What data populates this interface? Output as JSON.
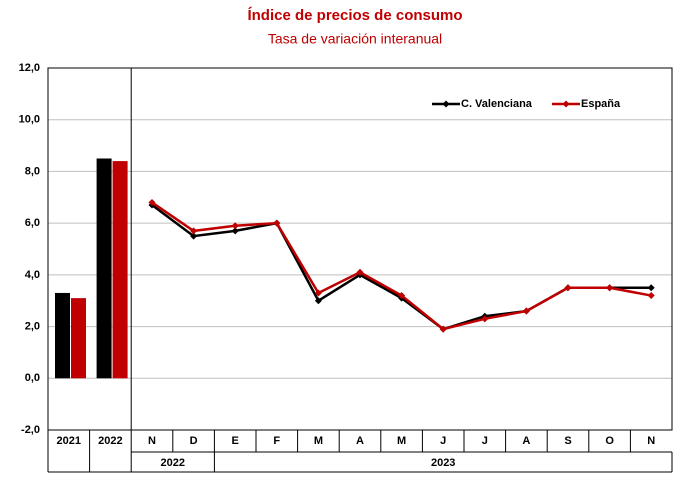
{
  "chart_data": {
    "type": "bar-line",
    "title": "Índice de precios de consumo",
    "subtitle": "Tasa de variación interanual",
    "categories": [
      "2021",
      "2022",
      "N",
      "D",
      "E",
      "F",
      "M",
      "A",
      "M",
      "J",
      "J",
      "A",
      "S",
      "O",
      "N"
    ],
    "kinds": [
      "bar",
      "bar",
      "line",
      "line",
      "line",
      "line",
      "line",
      "line",
      "line",
      "line",
      "line",
      "line",
      "line",
      "line",
      "line"
    ],
    "groups": [
      {
        "label": "2022",
        "span": [
          2,
          3
        ]
      },
      {
        "label": "2023",
        "span": [
          4,
          14
        ]
      }
    ],
    "series": [
      {
        "name": "C. Valenciana",
        "color": "#000000",
        "values": [
          3.3,
          8.5,
          6.7,
          5.5,
          5.7,
          6.0,
          3.0,
          4.0,
          3.1,
          1.9,
          2.4,
          2.6,
          3.5,
          3.5,
          3.5
        ]
      },
      {
        "name": "España",
        "color": "#c00000",
        "values": [
          3.1,
          8.4,
          6.8,
          5.7,
          5.9,
          6.0,
          3.3,
          4.1,
          3.2,
          1.9,
          2.3,
          2.6,
          3.5,
          3.5,
          3.2
        ]
      }
    ],
    "ylim": [
      -2,
      12
    ],
    "yticks": [
      {
        "value": -2,
        "label": "-2,0"
      },
      {
        "value": 0,
        "label": "0,0"
      },
      {
        "value": 2,
        "label": "2,0"
      },
      {
        "value": 4,
        "label": "4,0"
      },
      {
        "value": 6,
        "label": "6,0"
      },
      {
        "value": 8,
        "label": "8,0"
      },
      {
        "value": 10,
        "label": "10,0"
      },
      {
        "value": 12,
        "label": "12,0"
      }
    ],
    "grid": true,
    "legend": "top-right"
  }
}
